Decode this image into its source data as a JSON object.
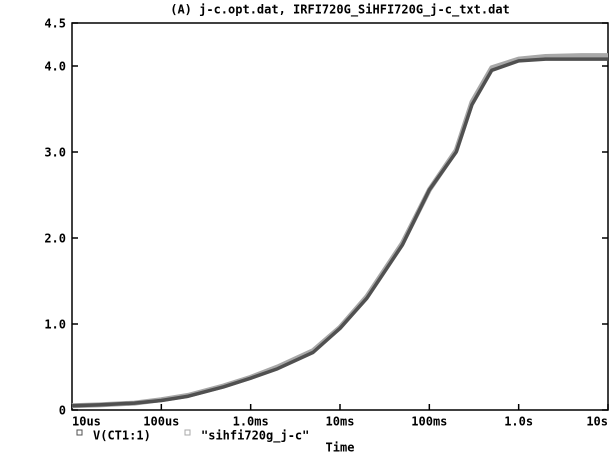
{
  "chart_data": {
    "type": "line",
    "title": "(A) j-c.opt.dat, IRFI720G_SiHFI720G_j-c_txt.dat",
    "x_label": "Time",
    "log_x": true,
    "x": [
      1e-05,
      2e-05,
      5e-05,
      0.0001,
      0.0002,
      0.0005,
      0.001,
      0.002,
      0.005,
      0.01,
      0.02,
      0.05,
      0.1,
      0.2,
      0.3,
      0.5,
      1,
      2,
      5,
      10
    ],
    "series": [
      {
        "name": "\"sihfi720g_j-c\"",
        "color": "#a8a8a8",
        "values": [
          0.05,
          0.06,
          0.08,
          0.12,
          0.17,
          0.28,
          0.38,
          0.5,
          0.69,
          0.96,
          1.32,
          1.94,
          2.56,
          3.02,
          3.58,
          3.98,
          4.08,
          4.11,
          4.12,
          4.12
        ]
      },
      {
        "name": "V(CT1:1)",
        "color": "#505050",
        "values": [
          0.05,
          0.06,
          0.08,
          0.11,
          0.16,
          0.27,
          0.37,
          0.48,
          0.67,
          0.95,
          1.3,
          1.92,
          2.56,
          3.0,
          3.55,
          3.95,
          4.06,
          4.08,
          4.08,
          4.08
        ]
      }
    ],
    "xlim": [
      1e-05,
      10
    ],
    "xticks": [
      {
        "value": 1e-05,
        "label": "10us"
      },
      {
        "value": 0.0001,
        "label": "100us"
      },
      {
        "value": 0.001,
        "label": "1.0ms"
      },
      {
        "value": 0.01,
        "label": "10ms"
      },
      {
        "value": 0.1,
        "label": "100ms"
      },
      {
        "value": 1,
        "label": "1.0s"
      },
      {
        "value": 10,
        "label": "10s"
      }
    ],
    "ylim": [
      0,
      4.5
    ],
    "yticks": [
      {
        "value": 0,
        "label": "0"
      },
      {
        "value": 1,
        "label": "1.0"
      },
      {
        "value": 2,
        "label": "2.0"
      },
      {
        "value": 3,
        "label": "3.0"
      },
      {
        "value": 4,
        "label": "4.0"
      },
      {
        "value": 4.5,
        "label": "4.5"
      }
    ]
  }
}
